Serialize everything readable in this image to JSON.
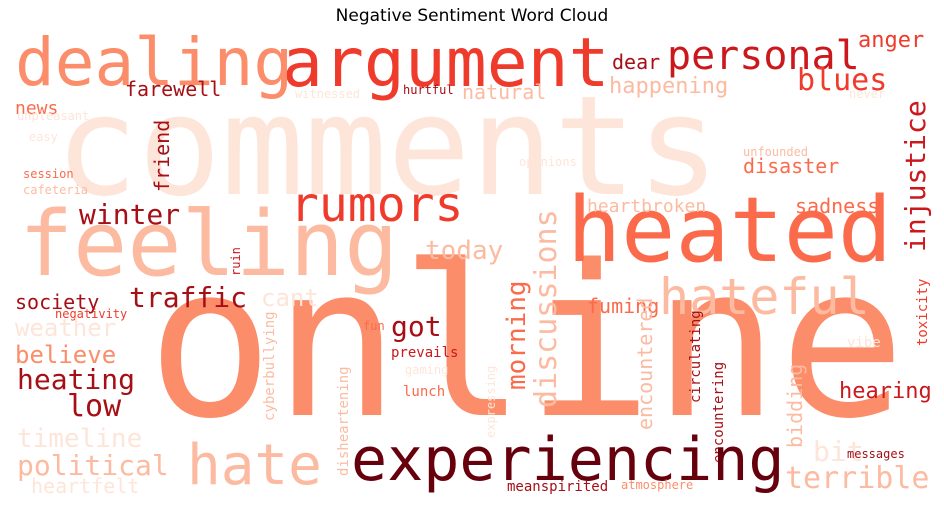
{
  "title": "Negative Sentiment Word Cloud",
  "words": [
    {
      "text": "comments",
      "color": "#fee5d9"
    },
    {
      "text": "online",
      "color": "#fc8d6a"
    },
    {
      "text": "feeling",
      "color": "#fcbba1"
    },
    {
      "text": "heated",
      "color": "#fb6a4a"
    },
    {
      "text": "argument",
      "color": "#ef3b2c"
    },
    {
      "text": "dealing",
      "color": "#fc8d6a"
    },
    {
      "text": "personal",
      "color": "#cb181d"
    },
    {
      "text": "anger",
      "color": "#ef3b2c"
    },
    {
      "text": "blues",
      "color": "#ef3b2c"
    },
    {
      "text": "dear",
      "color": "#a50f15"
    },
    {
      "text": "farewell",
      "color": "#a50f15"
    },
    {
      "text": "natural",
      "color": "#fcbba1"
    },
    {
      "text": "happening",
      "color": "#fcbba1"
    },
    {
      "text": "news",
      "color": "#fb6a4a"
    },
    {
      "text": "unpleasant",
      "color": "#fee5d9"
    },
    {
      "text": "witnessed",
      "color": "#fee5d9"
    },
    {
      "text": "hurtful",
      "color": "#a50f15"
    },
    {
      "text": "never",
      "color": "#fee5d9"
    },
    {
      "text": "easy",
      "color": "#fee5d9"
    },
    {
      "text": "injustice",
      "color": "#cb181d"
    },
    {
      "text": "friend",
      "color": "#a50f15"
    },
    {
      "text": "unfounded",
      "color": "#fcbba1"
    },
    {
      "text": "opinions",
      "color": "#fee5d9"
    },
    {
      "text": "disaster",
      "color": "#fb6a4a"
    },
    {
      "text": "session",
      "color": "#fb6a4a"
    },
    {
      "text": "cafeteria",
      "color": "#fcbba1"
    },
    {
      "text": "winter",
      "color": "#a50f15"
    },
    {
      "text": "rumors",
      "color": "#ef3b2c"
    },
    {
      "text": "discussions",
      "color": "#fcbba1"
    },
    {
      "text": "heartbroken",
      "color": "#fcbba1"
    },
    {
      "text": "sadness",
      "color": "#fb6a4a"
    },
    {
      "text": "today",
      "color": "#fcbba1"
    },
    {
      "text": "hateful",
      "color": "#fcbba1"
    },
    {
      "text": "traffic",
      "color": "#a50f15"
    },
    {
      "text": "cant",
      "color": "#fee5d9"
    },
    {
      "text": "society",
      "color": "#a50f15"
    },
    {
      "text": "negativity",
      "color": "#ef3b2c"
    },
    {
      "text": "weather",
      "color": "#fee5d9"
    },
    {
      "text": "ruin",
      "color": "#cb181d"
    },
    {
      "text": "got",
      "color": "#a50f15"
    },
    {
      "text": "morning",
      "color": "#fb6a4a"
    },
    {
      "text": "fuming",
      "color": "#fb6a4a"
    },
    {
      "text": "encountered",
      "color": "#fcbba1"
    },
    {
      "text": "fun",
      "color": "#fb6a4a"
    },
    {
      "text": "believe",
      "color": "#fc8d6a"
    },
    {
      "text": "heating",
      "color": "#a50f15"
    },
    {
      "text": "low",
      "color": "#a50f15"
    },
    {
      "text": "cyberbullying",
      "color": "#fcbba1"
    },
    {
      "text": "prevails",
      "color": "#cb181d"
    },
    {
      "text": "gaming",
      "color": "#fee5d9"
    },
    {
      "text": "expressing",
      "color": "#fee5d9"
    },
    {
      "text": "circulating",
      "color": "#a50f15"
    },
    {
      "text": "encountering",
      "color": "#a50f15"
    },
    {
      "text": "toxicity",
      "color": "#ef3b2c"
    },
    {
      "text": "hearing",
      "color": "#cb181d"
    },
    {
      "text": "bidding",
      "color": "#fcbba1"
    },
    {
      "text": "lunch",
      "color": "#fb6a4a"
    },
    {
      "text": "disheartening",
      "color": "#fcbba1"
    },
    {
      "text": "timeline",
      "color": "#fee5d9"
    },
    {
      "text": "political",
      "color": "#fcbba1"
    },
    {
      "text": "hate",
      "color": "#fcbba1"
    },
    {
      "text": "experiencing",
      "color": "#67000d"
    },
    {
      "text": "bit",
      "color": "#fee5d9"
    },
    {
      "text": "terrible",
      "color": "#fcbba1"
    },
    {
      "text": "heartfelt",
      "color": "#fee5d9"
    },
    {
      "text": "messages",
      "color": "#a50f15"
    },
    {
      "text": "meanspirited",
      "color": "#a50f15"
    },
    {
      "text": "atmosphere",
      "color": "#fc8d6a"
    },
    {
      "text": "vibe",
      "color": "#fee5d9"
    }
  ]
}
